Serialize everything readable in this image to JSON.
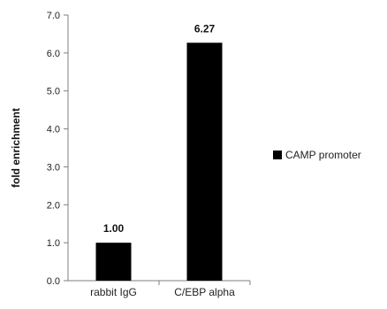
{
  "chart_data": {
    "type": "bar",
    "categories": [
      "rabbit IgG",
      "C/EBP alpha"
    ],
    "series": [
      {
        "name": "CAMP promoter",
        "values": [
          1.0,
          6.27
        ],
        "color": "#000000"
      }
    ],
    "data_labels": [
      "1.00",
      "6.27"
    ],
    "xlabel": "",
    "ylabel": "fold enrichment",
    "ylim": [
      0,
      7
    ],
    "yticks": [
      0,
      1,
      2,
      3,
      4,
      5,
      6,
      7
    ],
    "ytick_labels": [
      "0.0",
      "1.0",
      "2.0",
      "3.0",
      "4.0",
      "5.0",
      "6.0",
      "7.0"
    ],
    "grid": false,
    "legend_position": "right"
  }
}
